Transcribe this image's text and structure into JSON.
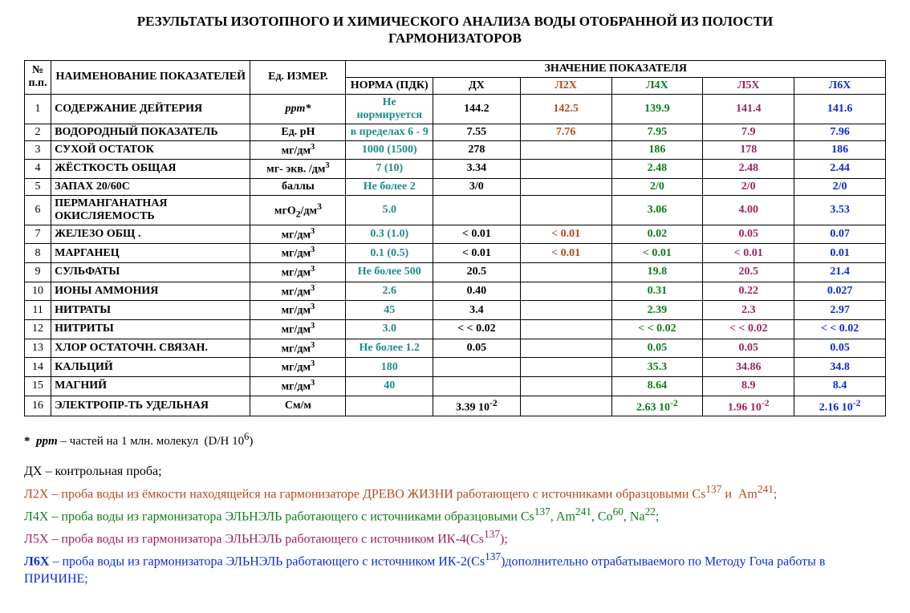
{
  "title": "РЕЗУЛЬТАТЫ ИЗОТОПНОГО И ХИМИЧЕСКОГО АНАЛИЗА ВОДЫ ОТОБРАННОЙ ИЗ ПОЛОСТИ ГАРМОНИЗАТОРОВ",
  "colors": {
    "norm": "#1f8a8a",
    "dx": "#000000",
    "l2x": "#b14b1b",
    "l4x": "#0f7b1a",
    "l5x": "#9c2263",
    "l6x": "#0a2bd6"
  },
  "header": {
    "num": "№ п.п.",
    "name": "НАИМЕНОВАНИЕ ПОКАЗАТЕЛЕЙ",
    "unit": "Ед. ИЗМЕР.",
    "group": "ЗНАЧЕНИЕ ПОКАЗАТЕЛЯ",
    "norm": "НОРМА (ПДК)",
    "dx": "ДХ",
    "l2x": "Л2Х",
    "l4x": "Л4Х",
    "l5x": "Л5Х",
    "l6x": "Л6Х"
  },
  "rows": [
    {
      "n": "1",
      "name": "СОДЕРЖАНИЕ ДЕЙТЕРИЯ",
      "unit": "ppm*",
      "unit_italic": true,
      "norm": "Не нормируется",
      "dx": "144.2",
      "l2x": "142.5",
      "l4x": "139.9",
      "l5x": "141.4",
      "l6x": "141.6"
    },
    {
      "n": "2",
      "name": "ВОДОРОДНЫЙ ПОКАЗАТЕЛЬ",
      "unit": "Ед. рН",
      "norm": "в пределах 6 - 9",
      "dx": "7.55",
      "l2x": "7.76",
      "l4x": "7.95",
      "l5x": "7.9",
      "l6x": "7.96"
    },
    {
      "n": "3",
      "name": "СУХОЙ ОСТАТОК",
      "unit": "мг/дм",
      "unit_sup": "3",
      "norm": "1000 (1500)",
      "dx": "278",
      "l2x": "",
      "l4x": "186",
      "l5x": "178",
      "l6x": "186"
    },
    {
      "n": "4",
      "name": "ЖЁСТКОСТЬ ОБЩАЯ",
      "unit": "мг- экв. /дм",
      "unit_sup": "3",
      "norm": "7 (10)",
      "dx": "3.34",
      "l2x": "",
      "l4x": "2.48",
      "l5x": "2.48",
      "l6x": "2.44"
    },
    {
      "n": "5",
      "name": "ЗАПАХ 20/60С",
      "unit": "баллы",
      "norm": "Не более 2",
      "dx": "3/0",
      "l2x": "",
      "l4x": "2/0",
      "l5x": "2/0",
      "l6x": "2/0"
    },
    {
      "n": "6",
      "name": "ПЕРМАНГАНАТНАЯ ОКИСЛЯЕМОСТЬ",
      "unit_html": "мгО<sub>2</sub>/дм<sup>3</sup>",
      "norm": "5.0",
      "dx": "",
      "l2x": "",
      "l4x": "3.06",
      "l5x": "4.00",
      "l6x": "3.53"
    },
    {
      "n": "7",
      "name": "ЖЕЛЕЗО ОБЩ .",
      "unit": "мг/дм",
      "unit_sup": "3",
      "norm": "0.3 (1.0)",
      "dx": "<   0.01",
      "l2x": "<   0.01",
      "l4x": "0.02",
      "l5x": "0.05",
      "l6x": "0.07"
    },
    {
      "n": "8",
      "name": "МАРГАНЕЦ",
      "unit": "мг/дм",
      "unit_sup": "3",
      "norm": "0.1 (0.5)",
      "dx": "<   0.01",
      "l2x": "<   0.01",
      "l4x": "<   0.01",
      "l5x": "<   0.01",
      "l6x": "0.01"
    },
    {
      "n": "9",
      "name": "СУЛЬФАТЫ",
      "unit": "мг/дм",
      "unit_sup": "3",
      "norm": "Не более 500",
      "dx": "20.5",
      "l2x": "",
      "l4x": "19.8",
      "l5x": "20.5",
      "l6x": "21.4"
    },
    {
      "n": "10",
      "name": "ИОНЫ АММОНИЯ",
      "unit": "мг/дм",
      "unit_sup": "3",
      "norm": "2.6",
      "dx": "0.40",
      "l2x": "",
      "l4x": "0.31",
      "l5x": "0.22",
      "l6x": "0.027"
    },
    {
      "n": "11",
      "name": "НИТРАТЫ",
      "unit": "мг/дм",
      "unit_sup": "3",
      "norm": "45",
      "dx": "3.4",
      "l2x": "",
      "l4x": "2.39",
      "l5x": "2.3",
      "l6x": "2.97"
    },
    {
      "n": "12",
      "name": "НИТРИТЫ",
      "unit": "мг/дм",
      "unit_sup": "3",
      "norm": "3.0",
      "dx": "< <   0.02",
      "l2x": "",
      "l4x": "< <   0.02",
      "l5x": "< <   0.02",
      "l6x": "< <   0.02"
    },
    {
      "n": "13",
      "name": "ХЛОР ОСТАТОЧН. СВЯЗАН.",
      "unit": "мг/дм",
      "unit_sup": "3",
      "norm": "Не более 1.2",
      "dx": "0.05",
      "l2x": "",
      "l4x": "0.05",
      "l5x": "0.05",
      "l6x": "0.05"
    },
    {
      "n": "14",
      "name": "КАЛЬЦИЙ",
      "unit": "мг/дм",
      "unit_sup": "3",
      "norm": "180",
      "dx": "",
      "l2x": "",
      "l4x": "35.3",
      "l5x": "34.86",
      "l6x": "34.8"
    },
    {
      "n": "15",
      "name": "МАГНИЙ",
      "unit": "мг/дм",
      "unit_sup": "3",
      "norm": "40",
      "dx": "",
      "l2x": "",
      "l4x": "8.64",
      "l5x": "8.9",
      "l6x": "8.4"
    },
    {
      "n": "16",
      "name": "ЭЛЕКТРОПР-ТЬ УДЕЛЬНАЯ",
      "unit": "См/м",
      "norm": "",
      "dx_html": "3.39 10<sup>-2</sup>",
      "l2x": "",
      "l4x_html": "2.63 10<sup>-2</sup>",
      "l5x_html": "1.96 10<sup>-2</sup>",
      "l6x_html": "2.16 10<sup>-2</sup>"
    }
  ],
  "footnote_html": "<span class=\"star\">* &nbsp;<i>ppm</i></span> – частей на 1 млн. молекул &nbsp;(D/H 10<sup>6</sup>)",
  "legend": {
    "dx": "ДХ – контрольная проба;",
    "l2x_html": "Л2Х – проба воды из ёмкости находящейся на гармонизаторе ДРЕВО ЖИЗНИ работающего с источниками образцовыми Cs<sup>137</sup> и &nbsp;Am<sup>241</sup>;",
    "l4x_html": "Л4Х – проба воды из гармонизатора ЭЛЬНЭЛЬ работающего с источниками образцовыми Cs<sup>137</sup>, Am<sup>241</sup>, Co<sup>60</sup>, Na<sup>22</sup>;",
    "l5x_html": "Л5Х – проба воды из гармонизатора ЭЛЬНЭЛЬ работающего с источником ИК-4(Cs<sup>137</sup>);",
    "l6x_html": "<b>Л6Х</b> – проба воды из гармонизатора ЭЛЬНЭЛЬ работающего с источником ИК-2(Cs<sup>137</sup>)дополнительно отрабатываемого по Методу Гоча работы в ПРИЧИНЕ;"
  }
}
